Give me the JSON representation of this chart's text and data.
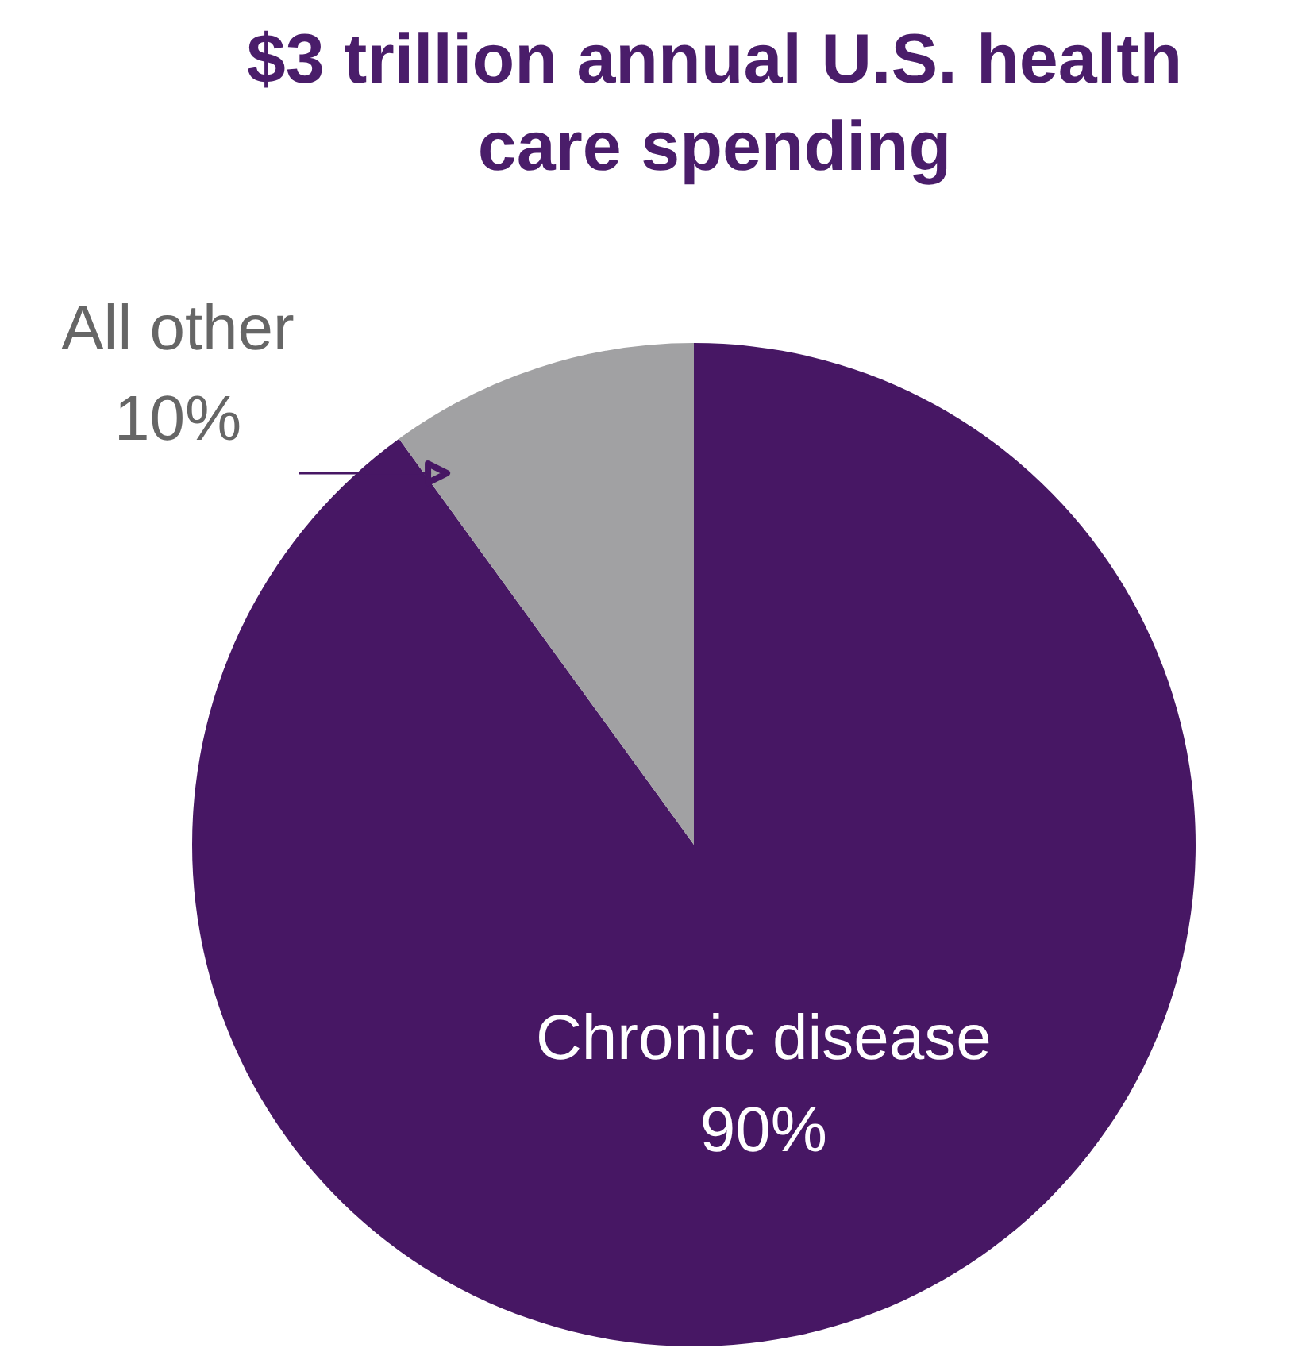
{
  "chart_data": {
    "type": "pie",
    "title": "$3 trillion annual U.S. health care spending",
    "categories": [
      "Chronic disease",
      "All other"
    ],
    "values": [
      90,
      10
    ],
    "value_labels": [
      "90%",
      "10%"
    ],
    "colors": [
      "#471764",
      "#a1a1a3"
    ]
  }
}
